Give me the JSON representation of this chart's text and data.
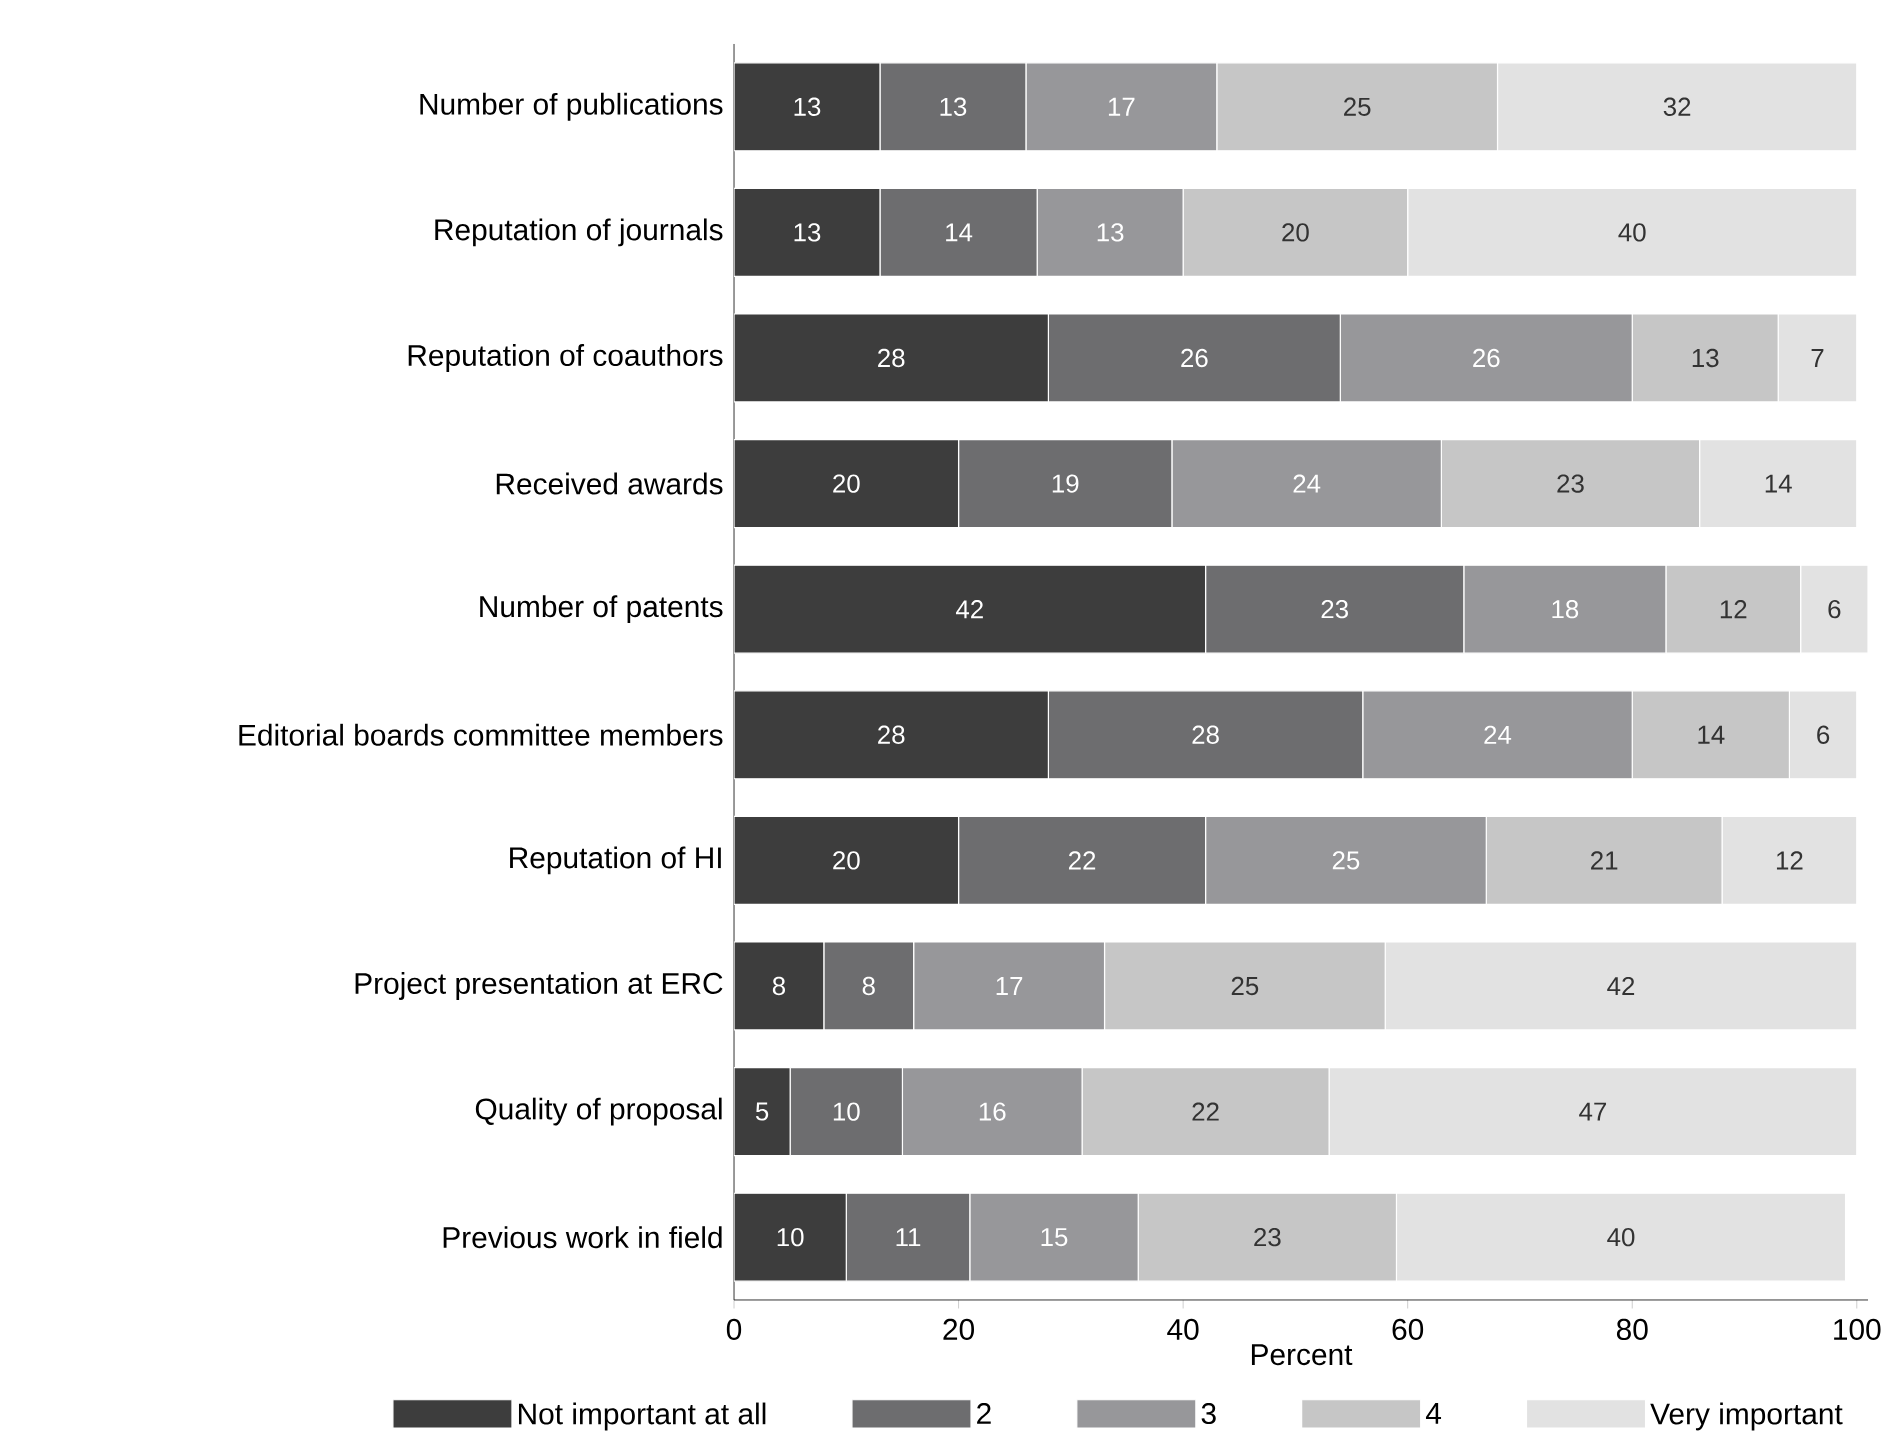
{
  "chart_data": {
    "type": "bar",
    "orientation": "horizontal",
    "stacked": true,
    "xlabel": "Percent",
    "categories": [
      "Number of publications",
      "Reputation of journals",
      "Reputation of coauthors",
      "Received awards",
      "Number of patents",
      "Editorial boards committee members",
      "Reputation of HI",
      "Project presentation at ERC",
      "Quality of proposal",
      "Previous work in field"
    ],
    "series": [
      {
        "name": "Not important at all",
        "color": "#3d3d3d",
        "values": [
          13,
          13,
          28,
          20,
          42,
          28,
          20,
          8,
          5,
          10
        ]
      },
      {
        "name": "2",
        "color": "#6d6d6f",
        "values": [
          13,
          14,
          26,
          19,
          23,
          28,
          22,
          8,
          10,
          11
        ]
      },
      {
        "name": "3",
        "color": "#97979a",
        "values": [
          17,
          13,
          26,
          24,
          18,
          24,
          25,
          17,
          16,
          15
        ]
      },
      {
        "name": "4",
        "color": "#c6c6c6",
        "values": [
          25,
          20,
          13,
          23,
          12,
          14,
          21,
          25,
          22,
          23
        ]
      },
      {
        "name": "Very important",
        "color": "#e2e2e2",
        "values": [
          32,
          40,
          7,
          14,
          6,
          6,
          12,
          42,
          47,
          40
        ]
      }
    ],
    "xlim": [
      0,
      101
    ],
    "xticks": [
      0,
      20,
      40,
      60,
      80,
      100
    ],
    "data_labels": true,
    "grid": false,
    "legend": "bottom"
  }
}
